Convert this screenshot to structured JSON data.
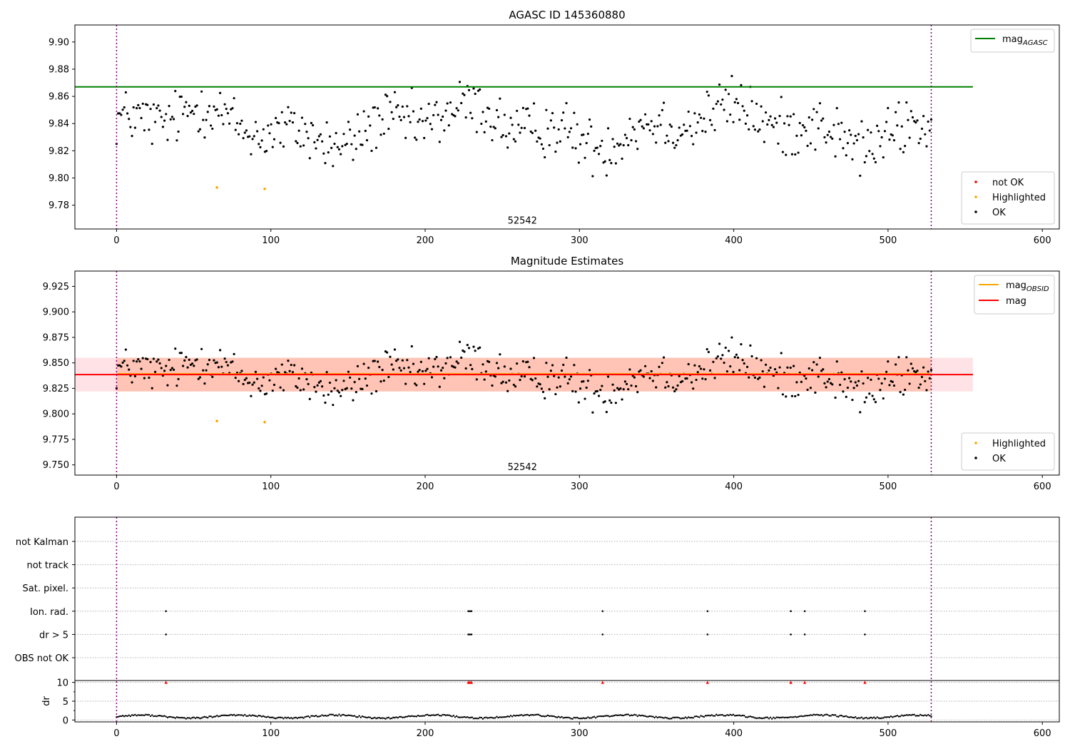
{
  "chart_data": [
    {
      "type": "scatter",
      "title": "AGASC ID 145360880",
      "xlim": [
        -27,
        611
      ],
      "ylim": [
        9.7625,
        9.9125
      ],
      "xticks": [
        0,
        100,
        200,
        300,
        400,
        500,
        600
      ],
      "yticks": [
        9.78,
        9.8,
        9.82,
        9.84,
        9.86,
        9.88,
        9.9
      ],
      "ytick_decimals": 2,
      "annotations": [
        {
          "text": "52542",
          "x": 263,
          "y": 9.7665
        }
      ],
      "vlines": [
        0,
        528
      ],
      "hline": {
        "name": "mag_AGASC",
        "y": 9.867,
        "x_range": [
          -27,
          555
        ],
        "color": "#008000"
      },
      "series": [
        {
          "name": "not OK",
          "color": "#ff0000",
          "points": []
        },
        {
          "name": "Highlighted",
          "color": "#ffa500",
          "points": [
            [
              65,
              9.793
            ],
            [
              96,
              9.792
            ]
          ]
        },
        {
          "name": "OK",
          "color": "#000000",
          "generated": {
            "n": 528,
            "x_start": 0,
            "x_end": 528,
            "mean": 9.838,
            "sd": 0.0145,
            "min": 9.8,
            "max": 9.88
          }
        }
      ],
      "legends": {
        "top": [
          {
            "label": "mag",
            "sub": "AGASC",
            "color": "#008000"
          }
        ],
        "bottom": [
          {
            "label": "not OK",
            "color": "#ff0000"
          },
          {
            "label": "Highlighted",
            "color": "#ffa500"
          },
          {
            "label": "OK",
            "color": "#000000"
          }
        ]
      }
    },
    {
      "type": "scatter",
      "title": "Magnitude Estimates",
      "xlim": [
        -27,
        611
      ],
      "ylim": [
        9.74,
        9.94
      ],
      "xticks": [
        0,
        100,
        200,
        300,
        400,
        500,
        600
      ],
      "yticks": [
        9.75,
        9.775,
        9.8,
        9.825,
        9.85,
        9.875,
        9.9,
        9.925
      ],
      "ytick_decimals": 3,
      "annotations": [
        {
          "text": "52542",
          "x": 263,
          "y": 9.745
        }
      ],
      "vlines": [
        0,
        528
      ],
      "bands": [
        {
          "name": "mag range",
          "y": [
            9.822,
            9.855
          ],
          "x_range": [
            -27,
            555
          ],
          "color": "#ffb6c1",
          "opacity": 0.4
        },
        {
          "name": "mag_OBSID range",
          "y": [
            9.822,
            9.855
          ],
          "x_range": [
            0,
            528
          ],
          "color": "#ffa07a",
          "opacity": 0.45
        }
      ],
      "hlines": [
        {
          "name": "mag_OBSID",
          "y": 9.8392,
          "x_range": [
            0,
            528
          ],
          "color": "#ffa500"
        },
        {
          "name": "mag",
          "y": 9.8385,
          "x_range": [
            -27,
            555
          ],
          "color": "#ff0000"
        }
      ],
      "series": [
        {
          "name": "Highlighted",
          "color": "#ffa500",
          "points": [
            [
              65,
              9.793
            ],
            [
              96,
              9.792
            ]
          ]
        },
        {
          "name": "OK",
          "color": "#000000",
          "generated": {
            "n": 528,
            "x_start": 0,
            "x_end": 528,
            "mean": 9.838,
            "sd": 0.0145,
            "min": 9.8,
            "max": 9.88
          }
        }
      ],
      "legends": {
        "top": [
          {
            "label": "mag",
            "sub": "OBSID",
            "color": "#ffa500"
          },
          {
            "label": "mag",
            "sub": "",
            "color": "#ff0000"
          }
        ],
        "bottom": [
          {
            "label": "Highlighted",
            "color": "#ffa500"
          },
          {
            "label": "OK",
            "color": "#000000"
          }
        ]
      }
    },
    {
      "type": "scatter",
      "title": "",
      "xlim": [
        -27,
        611
      ],
      "xticks": [
        0,
        100,
        200,
        300,
        400,
        500,
        600
      ],
      "vlines": [
        0,
        528
      ],
      "flag_rows": [
        "not Kalman",
        "not track",
        "Sat. pixel.",
        "Ion. rad.",
        "dr > 5",
        "OBS not OK"
      ],
      "flags": {
        "Ion. rad.": [
          32,
          228,
          229,
          230,
          315,
          383,
          437,
          446,
          485
        ],
        "dr > 5": [
          32,
          228,
          229,
          230,
          315,
          383,
          437,
          446,
          485
        ]
      },
      "dr": {
        "ylabel": "dr",
        "ylim": [
          -0.5,
          10.5
        ],
        "yticks": [
          0,
          5,
          10
        ],
        "clipped_markers": [
          32,
          228,
          229,
          230,
          315,
          383,
          437,
          446,
          485
        ],
        "clipped_value": 10,
        "clipped_color": "#ff0000",
        "generated": {
          "n": 528,
          "x_start": 0,
          "x_end": 528,
          "mean": 0.9,
          "amplitude": 0.4
        }
      }
    }
  ]
}
